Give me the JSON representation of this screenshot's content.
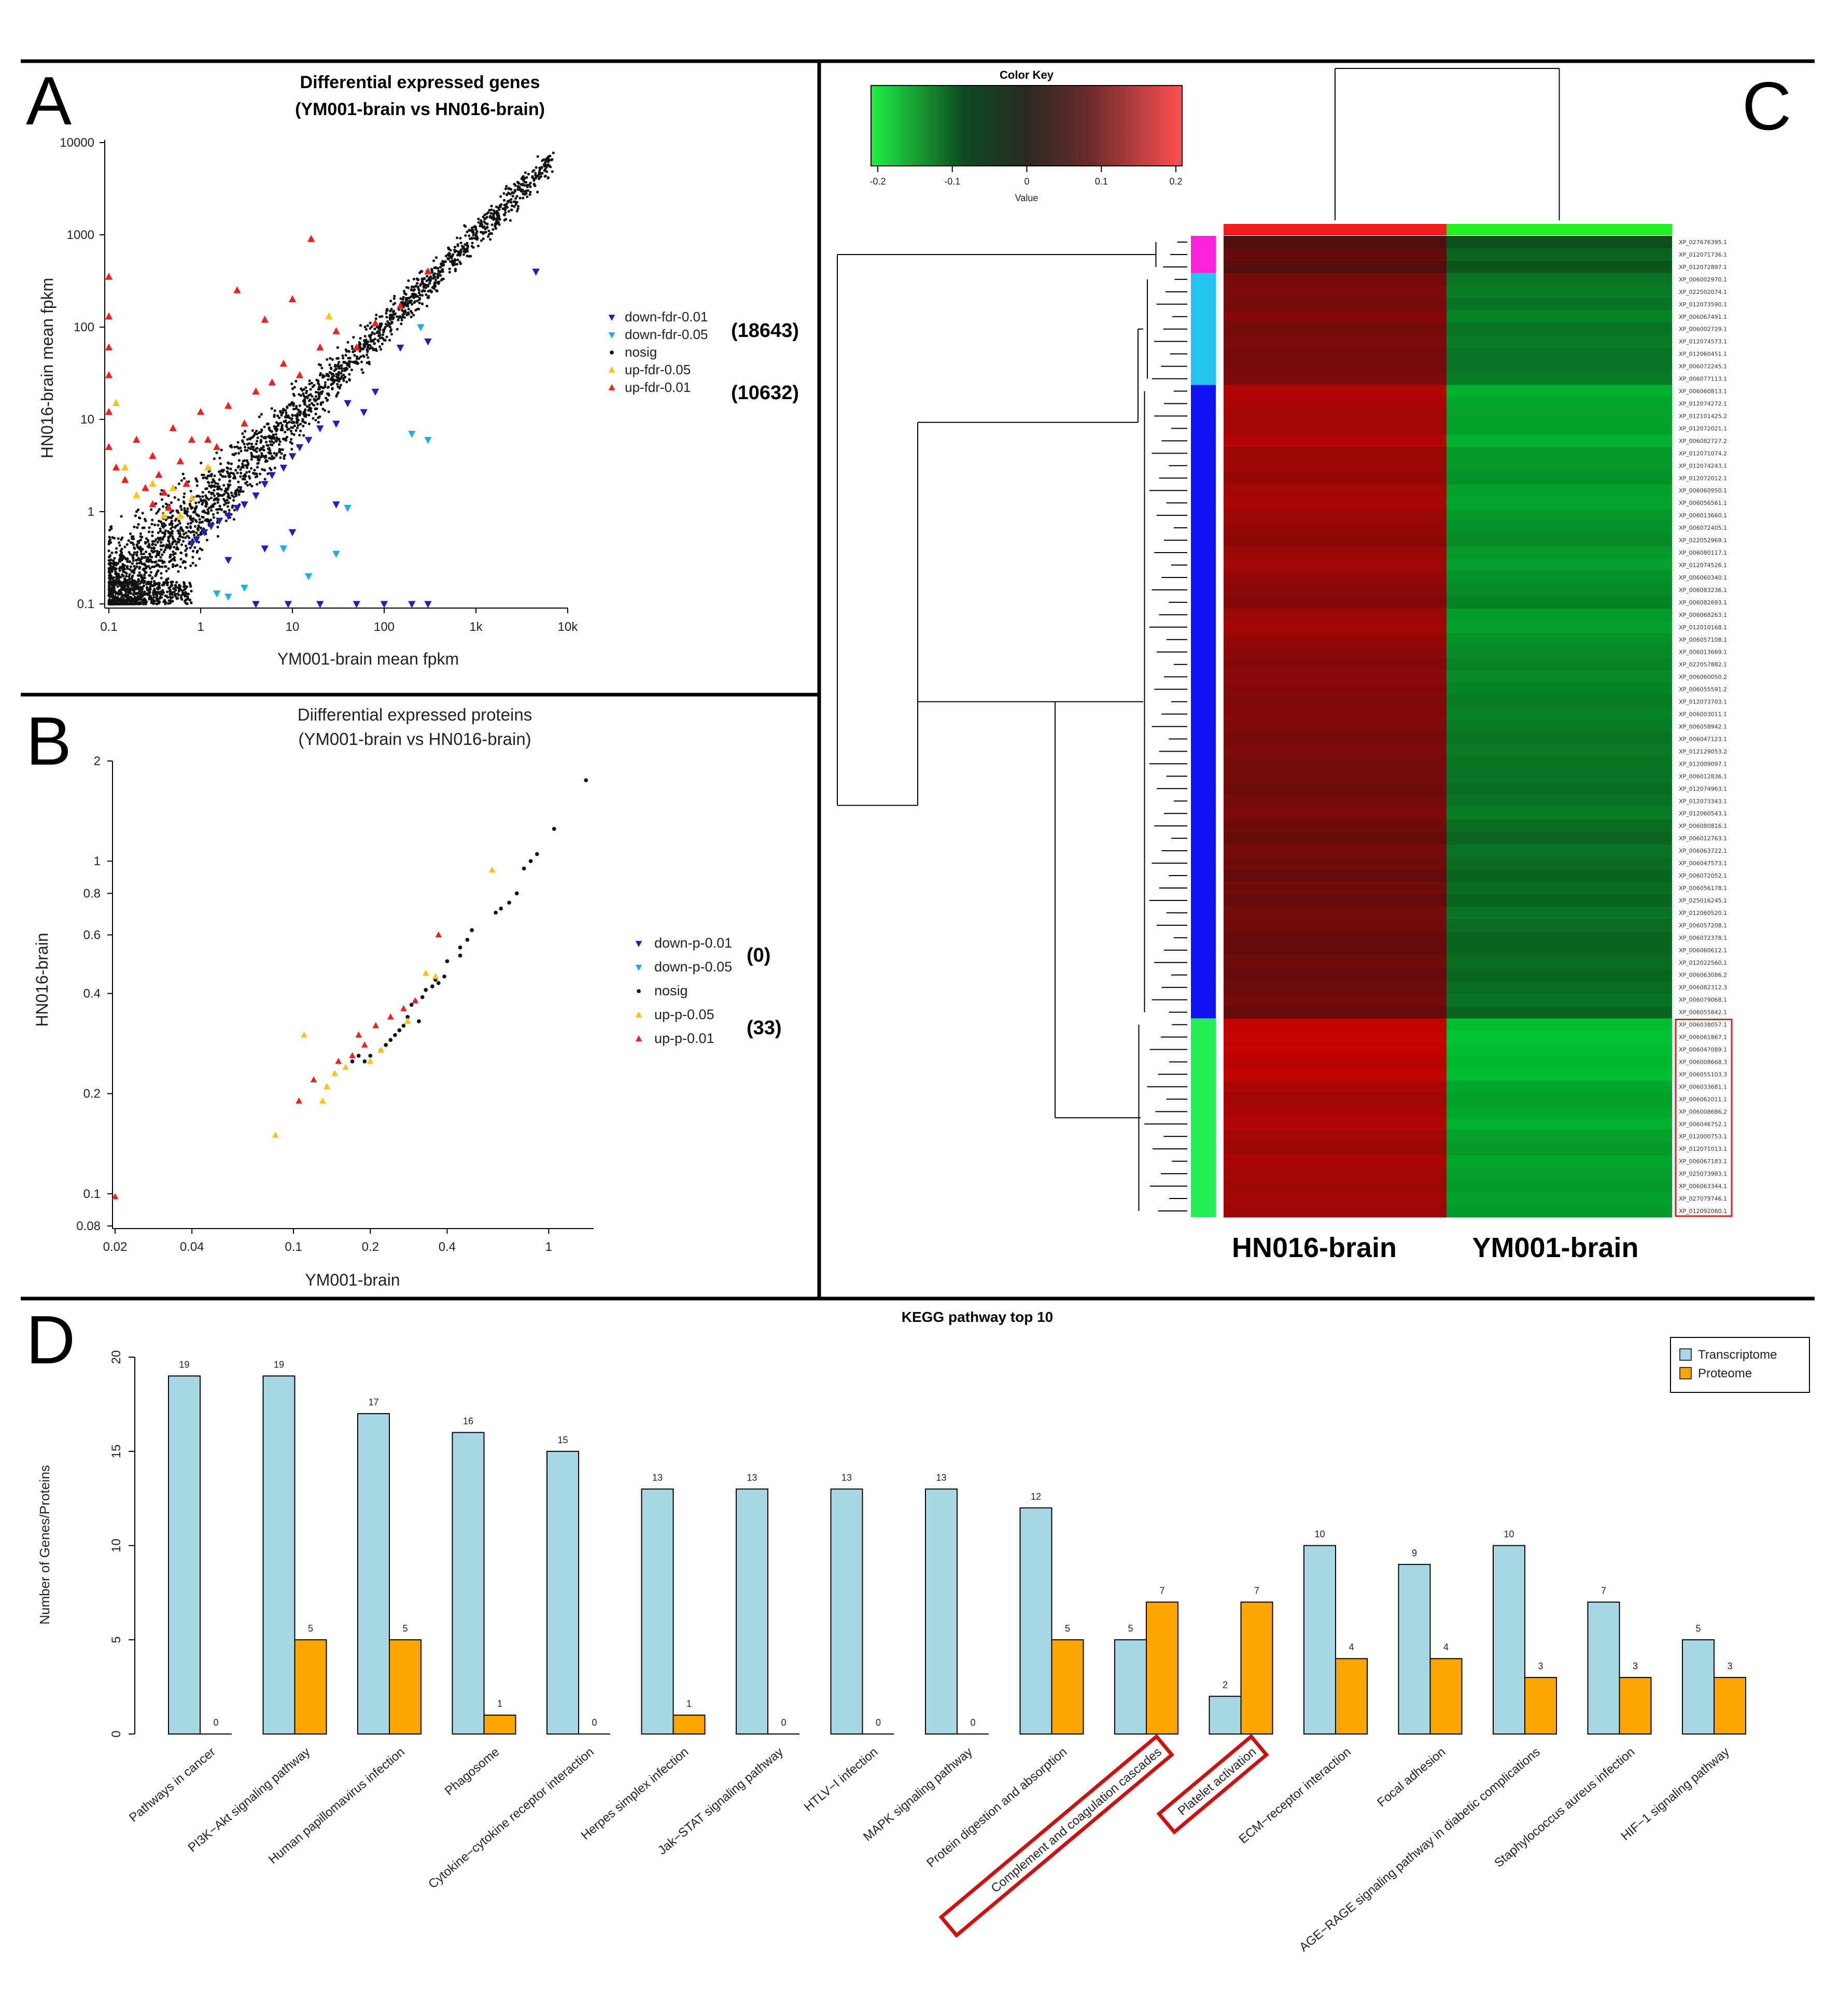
{
  "panel_letters": {
    "a": "A",
    "b": "B",
    "c": "C",
    "d": "D"
  },
  "chart_data": [
    {
      "id": "A",
      "type": "scatter",
      "title": "Differential expressed genes",
      "subtitle": "(YM001-brain vs HN016-brain)",
      "xlabel": "YM001-brain mean fpkm",
      "ylabel": "HN016-brain mean fpkm",
      "x_scale": "log",
      "y_scale": "log",
      "xlim": [
        0.1,
        10000
      ],
      "ylim": [
        0.1,
        10000
      ],
      "x_ticks": [
        {
          "value": 0.1,
          "label": "0.1"
        },
        {
          "value": 1,
          "label": "1"
        },
        {
          "value": 10,
          "label": "10"
        },
        {
          "value": 100,
          "label": "100"
        },
        {
          "value": 1000,
          "label": "1k"
        },
        {
          "value": 10000,
          "label": "10k"
        }
      ],
      "y_ticks": [
        {
          "value": 0.1,
          "label": "0.1"
        },
        {
          "value": 1,
          "label": "1"
        },
        {
          "value": 10,
          "label": "10"
        },
        {
          "value": 100,
          "label": "100"
        },
        {
          "value": 1000,
          "label": "1000"
        },
        {
          "value": 10000,
          "label": "10000"
        }
      ],
      "legend": [
        {
          "name": "down-fdr-0.01",
          "color": "#1f1fbf",
          "marker": "down"
        },
        {
          "name": "down-fdr-0.05",
          "color": "#19b0e6",
          "marker": "down"
        },
        {
          "name": "nosig",
          "color": "#111111",
          "marker": "dot"
        },
        {
          "name": "up-fdr-0.05",
          "color": "#ffc020",
          "marker": "up"
        },
        {
          "name": "up-fdr-0.01",
          "color": "#ee2020",
          "marker": "up"
        }
      ],
      "legend_placement": "right",
      "annotations": [
        {
          "text": "(18643)",
          "series": "down"
        },
        {
          "text": "(10632)",
          "series": "up"
        }
      ],
      "series": [
        {
          "name": "nosig",
          "kind": "diagonal-cloud",
          "x_range": [
            0.1,
            7000
          ]
        },
        {
          "name": "down-fdr-0.01",
          "x": [
            4500,
            300,
            150,
            80,
            60,
            40,
            30,
            20,
            15,
            12,
            10,
            8,
            6,
            5,
            4,
            3,
            2.5,
            2,
            1.6,
            1.3,
            1.1,
            0.9,
            0.8,
            4,
            9,
            20,
            50,
            200,
            5,
            10,
            30,
            100,
            300,
            2
          ],
          "y": [
            400,
            70,
            60,
            20,
            12,
            15,
            9,
            8,
            6,
            5,
            4,
            3,
            2.5,
            2,
            1.5,
            1.2,
            1.1,
            0.9,
            0.8,
            0.7,
            0.6,
            0.5,
            0.45,
            0.1,
            0.1,
            0.1,
            0.1,
            0.1,
            0.4,
            0.6,
            1.2,
            0.1,
            0.1,
            0.3
          ]
        },
        {
          "name": "down-fdr-0.05",
          "x": [
            250,
            200,
            300,
            40,
            30,
            15,
            3,
            2,
            8,
            1.5
          ],
          "y": [
            100,
            7,
            6,
            1.1,
            0.35,
            0.2,
            0.15,
            0.12,
            0.4,
            0.13
          ]
        },
        {
          "name": "up-fdr-0.05",
          "x": [
            0.12,
            0.15,
            0.2,
            0.3,
            0.4,
            0.5,
            0.8,
            1.2,
            25,
            0.6
          ],
          "y": [
            15,
            3,
            1.5,
            2,
            0.9,
            1.8,
            1.4,
            3,
            130,
            0.9
          ]
        },
        {
          "name": "up-fdr-0.01",
          "x": [
            0.1,
            0.1,
            0.1,
            0.1,
            0.1,
            0.1,
            0.12,
            0.15,
            0.2,
            0.25,
            0.3,
            0.35,
            0.4,
            0.5,
            0.6,
            0.8,
            1,
            1.5,
            2,
            3,
            4,
            6,
            8,
            12,
            20,
            30,
            50,
            80,
            150,
            300,
            0.7,
            1.2,
            2.5,
            5,
            10,
            16,
            0.3,
            0.45
          ],
          "y": [
            350,
            130,
            60,
            30,
            12,
            5,
            3,
            2.2,
            6,
            1.8,
            4,
            2.5,
            1.6,
            8,
            3.5,
            6,
            12,
            5,
            14,
            9,
            20,
            25,
            40,
            30,
            60,
            90,
            60,
            110,
            170,
            400,
            2,
            6,
            250,
            120,
            200,
            900,
            1.2,
            1.1
          ]
        }
      ]
    },
    {
      "id": "B",
      "type": "scatter",
      "title": "Diifferential expressed proteins",
      "subtitle": "(YM001-brain vs HN016-brain)",
      "xlabel": "YM001-brain",
      "ylabel": "HN016-brain",
      "x_scale": "log",
      "y_scale": "log",
      "xlim": [
        0.02,
        1.5
      ],
      "ylim": [
        0.08,
        2
      ],
      "x_ticks": [
        {
          "value": 0.02,
          "label": "0.02"
        },
        {
          "value": 0.04,
          "label": "0.04"
        },
        {
          "value": 0.1,
          "label": "0.1"
        },
        {
          "value": 0.2,
          "label": "0.2"
        },
        {
          "value": 0.4,
          "label": "0.4"
        },
        {
          "value": 1,
          "label": "1"
        }
      ],
      "y_ticks": [
        {
          "value": 0.08,
          "label": "0.08"
        },
        {
          "value": 0.1,
          "label": "0.1"
        },
        {
          "value": 0.2,
          "label": "0.2"
        },
        {
          "value": 0.4,
          "label": "0.4"
        },
        {
          "value": 0.6,
          "label": "0.6"
        },
        {
          "value": 0.8,
          "label": "0.8"
        },
        {
          "value": 1,
          "label": "1"
        },
        {
          "value": 2,
          "label": "2"
        }
      ],
      "legend": [
        {
          "name": "down-p-0.01",
          "color": "#1f1fbf",
          "marker": "down"
        },
        {
          "name": "down-p-0.05",
          "color": "#19b0e6",
          "marker": "down"
        },
        {
          "name": "nosig",
          "color": "#111111",
          "marker": "dot"
        },
        {
          "name": "up-p-0.05",
          "color": "#ffc020",
          "marker": "up"
        },
        {
          "name": "up-p-0.01",
          "color": "#ee2020",
          "marker": "up"
        }
      ],
      "legend_placement": "right",
      "annotations": [
        {
          "text": "(0)",
          "series": "down"
        },
        {
          "text": "(33)",
          "series": "up"
        }
      ],
      "series": [
        {
          "name": "nosig",
          "x": [
            1.4,
            1.05,
            0.9,
            0.85,
            0.8,
            0.75,
            0.7,
            0.65,
            0.62,
            0.5,
            0.48,
            0.45,
            0.4,
            0.39,
            0.37,
            0.35,
            0.33,
            0.32,
            0.3,
            0.29,
            0.28,
            0.27,
            0.26,
            0.25,
            0.24,
            0.23,
            0.22,
            0.2,
            0.19,
            0.18,
            0.17,
            0.45,
            0.36,
            0.31
          ],
          "y": [
            1.75,
            1.25,
            1.05,
            1.0,
            0.95,
            0.8,
            0.75,
            0.72,
            0.7,
            0.62,
            0.58,
            0.55,
            0.5,
            0.45,
            0.43,
            0.42,
            0.41,
            0.39,
            0.38,
            0.37,
            0.34,
            0.32,
            0.31,
            0.3,
            0.29,
            0.28,
            0.27,
            0.26,
            0.25,
            0.26,
            0.25,
            0.52,
            0.44,
            0.33
          ]
        },
        {
          "name": "up-p-0.05",
          "x": [
            0.11,
            0.135,
            0.16,
            0.2,
            0.22,
            0.28,
            0.33,
            0.085,
            0.13,
            0.6,
            0.36,
            0.145
          ],
          "y": [
            0.3,
            0.21,
            0.24,
            0.25,
            0.27,
            0.33,
            0.46,
            0.15,
            0.19,
            0.94,
            0.45,
            0.23
          ]
        },
        {
          "name": "up-p-0.01",
          "x": [
            0.02,
            0.105,
            0.15,
            0.17,
            0.19,
            0.21,
            0.24,
            0.27,
            0.3,
            0.37,
            0.18,
            0.12
          ],
          "y": [
            0.098,
            0.19,
            0.25,
            0.26,
            0.28,
            0.32,
            0.34,
            0.36,
            0.38,
            0.6,
            0.3,
            0.22
          ]
        }
      ]
    },
    {
      "id": "C",
      "type": "heatmap",
      "columns": [
        "HN016-brain",
        "YM001-brain"
      ],
      "column_colors": [
        "#ee1c1c",
        "#22ee22"
      ],
      "color_key": {
        "title": "Color Key",
        "xlabel": "Value",
        "ticks": [
          "-0.2",
          "-0.1",
          "0",
          "0.1",
          "0.2"
        ],
        "range": [
          -0.22,
          0.22
        ],
        "colors": [
          "#22ee44",
          "#0d3b1c",
          "#3a2020",
          "#ff5050"
        ]
      },
      "row_labels": [
        "XP_027676395.1",
        "XP_012071736.1",
        "XP_012072897.1",
        "XP_006002970.1",
        "XP_022502074.1",
        "XP_012073590.1",
        "XP_006067491.1",
        "XP_006002729.1",
        "XP_012074573.1",
        "XP_012060451.1",
        "XP_006072245.1",
        "XP_006077113.1",
        "XP_006060813.1",
        "XP_012074272.1",
        "XP_012101425.2",
        "XP_012072021.1",
        "XP_006082727.2",
        "XP_012071074.2",
        "XP_012074243.1",
        "XP_012072012.1",
        "XP_006060950.1",
        "XP_006056561.1",
        "XP_006013660.1",
        "XP_006072405.1",
        "XP_022052969.1",
        "XP_006080117.1",
        "XP_012074526.1",
        "XP_006060340.1",
        "XP_006083236.1",
        "XP_006082693.1",
        "XP_006068263.1",
        "XP_012010168.1",
        "XP_006057108.1",
        "XP_006013669.1",
        "XP_022057882.1",
        "XP_006060050.2",
        "XP_006055591.2",
        "XP_012073703.1",
        "XP_006003011.1",
        "XP_006058942.1",
        "XP_006047123.1",
        "XP_012129053.2",
        "XP_012009097.1",
        "XP_006012836.1",
        "XP_012074963.1",
        "XP_012073343.1",
        "XP_012060543.1",
        "XP_006080816.1",
        "XP_006012763.1",
        "XP_006063722.1",
        "XP_006047573.1",
        "XP_006072052.1",
        "XP_006056178.1",
        "XP_025016245.1",
        "XP_012060520.1",
        "XP_006057208.1",
        "XP_006072378.1",
        "XP_006060612.1",
        "XP_012022560.1",
        "XP_006063086.2",
        "XP_006082312.3",
        "XP_006079068.1",
        "XP_006055842.1",
        "XP_006038057.1",
        "XP_006061867.1",
        "XP_006047089.1",
        "XP_006008668.3",
        "XP_006055103.3",
        "XP_006033681.1",
        "XP_006062011.1",
        "XP_006008686.2",
        "XP_006046752.1",
        "XP_012000753.1",
        "XP_012071013.1",
        "XP_006067183.1",
        "XP_025073983.1",
        "XP_006063344.1",
        "XP_027079746.1",
        "XP_012092080.1"
      ],
      "groups": [
        {
          "color": "#ff22dd",
          "rows": 3,
          "values": [
            0.05,
            0.08,
            0.06
          ]
        },
        {
          "color": "#22c4ee",
          "rows": 9,
          "values": [
            0.1,
            0.11,
            0.1,
            0.12,
            0.1,
            0.11,
            0.1,
            0.1,
            0.11
          ]
        },
        {
          "color": "#1010f0",
          "rows": 51,
          "values": [
            0.18,
            0.17,
            0.16,
            0.16,
            0.18,
            0.15,
            0.15,
            0.14,
            0.16,
            0.17,
            0.15,
            0.14,
            0.13,
            0.15,
            0.16,
            0.14,
            0.13,
            0.12,
            0.15,
            0.16,
            0.14,
            0.13,
            0.12,
            0.13,
            0.12,
            0.11,
            0.12,
            0.11,
            0.1,
            0.11,
            0.1,
            0.1,
            0.09,
            0.1,
            0.11,
            0.09,
            0.08,
            0.1,
            0.09,
            0.08,
            0.09,
            0.08,
            0.1,
            0.09,
            0.08,
            0.08,
            0.09,
            0.08,
            0.09,
            0.1,
            0.08
          ]
        },
        {
          "color": "#22ee55",
          "rows": 16,
          "values": [
            0.2,
            0.21,
            0.2,
            0.19,
            0.2,
            0.17,
            0.16,
            0.17,
            0.18,
            0.16,
            0.15,
            0.17,
            0.16,
            0.15,
            0.16,
            0.15
          ]
        }
      ],
      "highlight_box_group": 3
    },
    {
      "id": "D",
      "type": "bar",
      "title": "KEGG pathway top 10",
      "ylabel": "Number of Genes/Proteins",
      "ylim": [
        0,
        20
      ],
      "y_ticks": [
        "0",
        "5",
        "10",
        "15",
        "20"
      ],
      "categories": [
        "Pathways in cancer",
        "PI3K−Akt signaling pathway",
        "Human papillomavirus infection",
        "Phagosome",
        "Cytokine−cytokine receptor interaction",
        "Herpes simplex infection",
        "Jak−STAT signaling pathway",
        "HTLV−I infection",
        "MAPK signaling pathway",
        "Protein digestion and absorption",
        "Complement and coagulation cascades",
        "Platelet activation",
        "ECM−receptor interaction",
        "Focal adhesion",
        "AGE−RAGE signaling pathway in diabetic complications",
        "Staphylococcus aureus infection",
        "HIF−1 signaling pathway"
      ],
      "series": [
        {
          "name": "Transcriptome",
          "color": "#a8d8e6",
          "values": [
            19,
            19,
            17,
            16,
            15,
            13,
            13,
            13,
            13,
            12,
            5,
            2,
            10,
            9,
            10,
            7,
            5
          ]
        },
        {
          "name": "Proteome",
          "color": "#ffa500",
          "values": [
            0,
            5,
            5,
            1,
            0,
            1,
            0,
            0,
            0,
            5,
            7,
            7,
            4,
            4,
            3,
            3,
            3
          ]
        }
      ],
      "legend_placement": "top-right",
      "highlighted_categories": [
        10,
        11
      ],
      "highlight_color": "#cc1111"
    }
  ]
}
